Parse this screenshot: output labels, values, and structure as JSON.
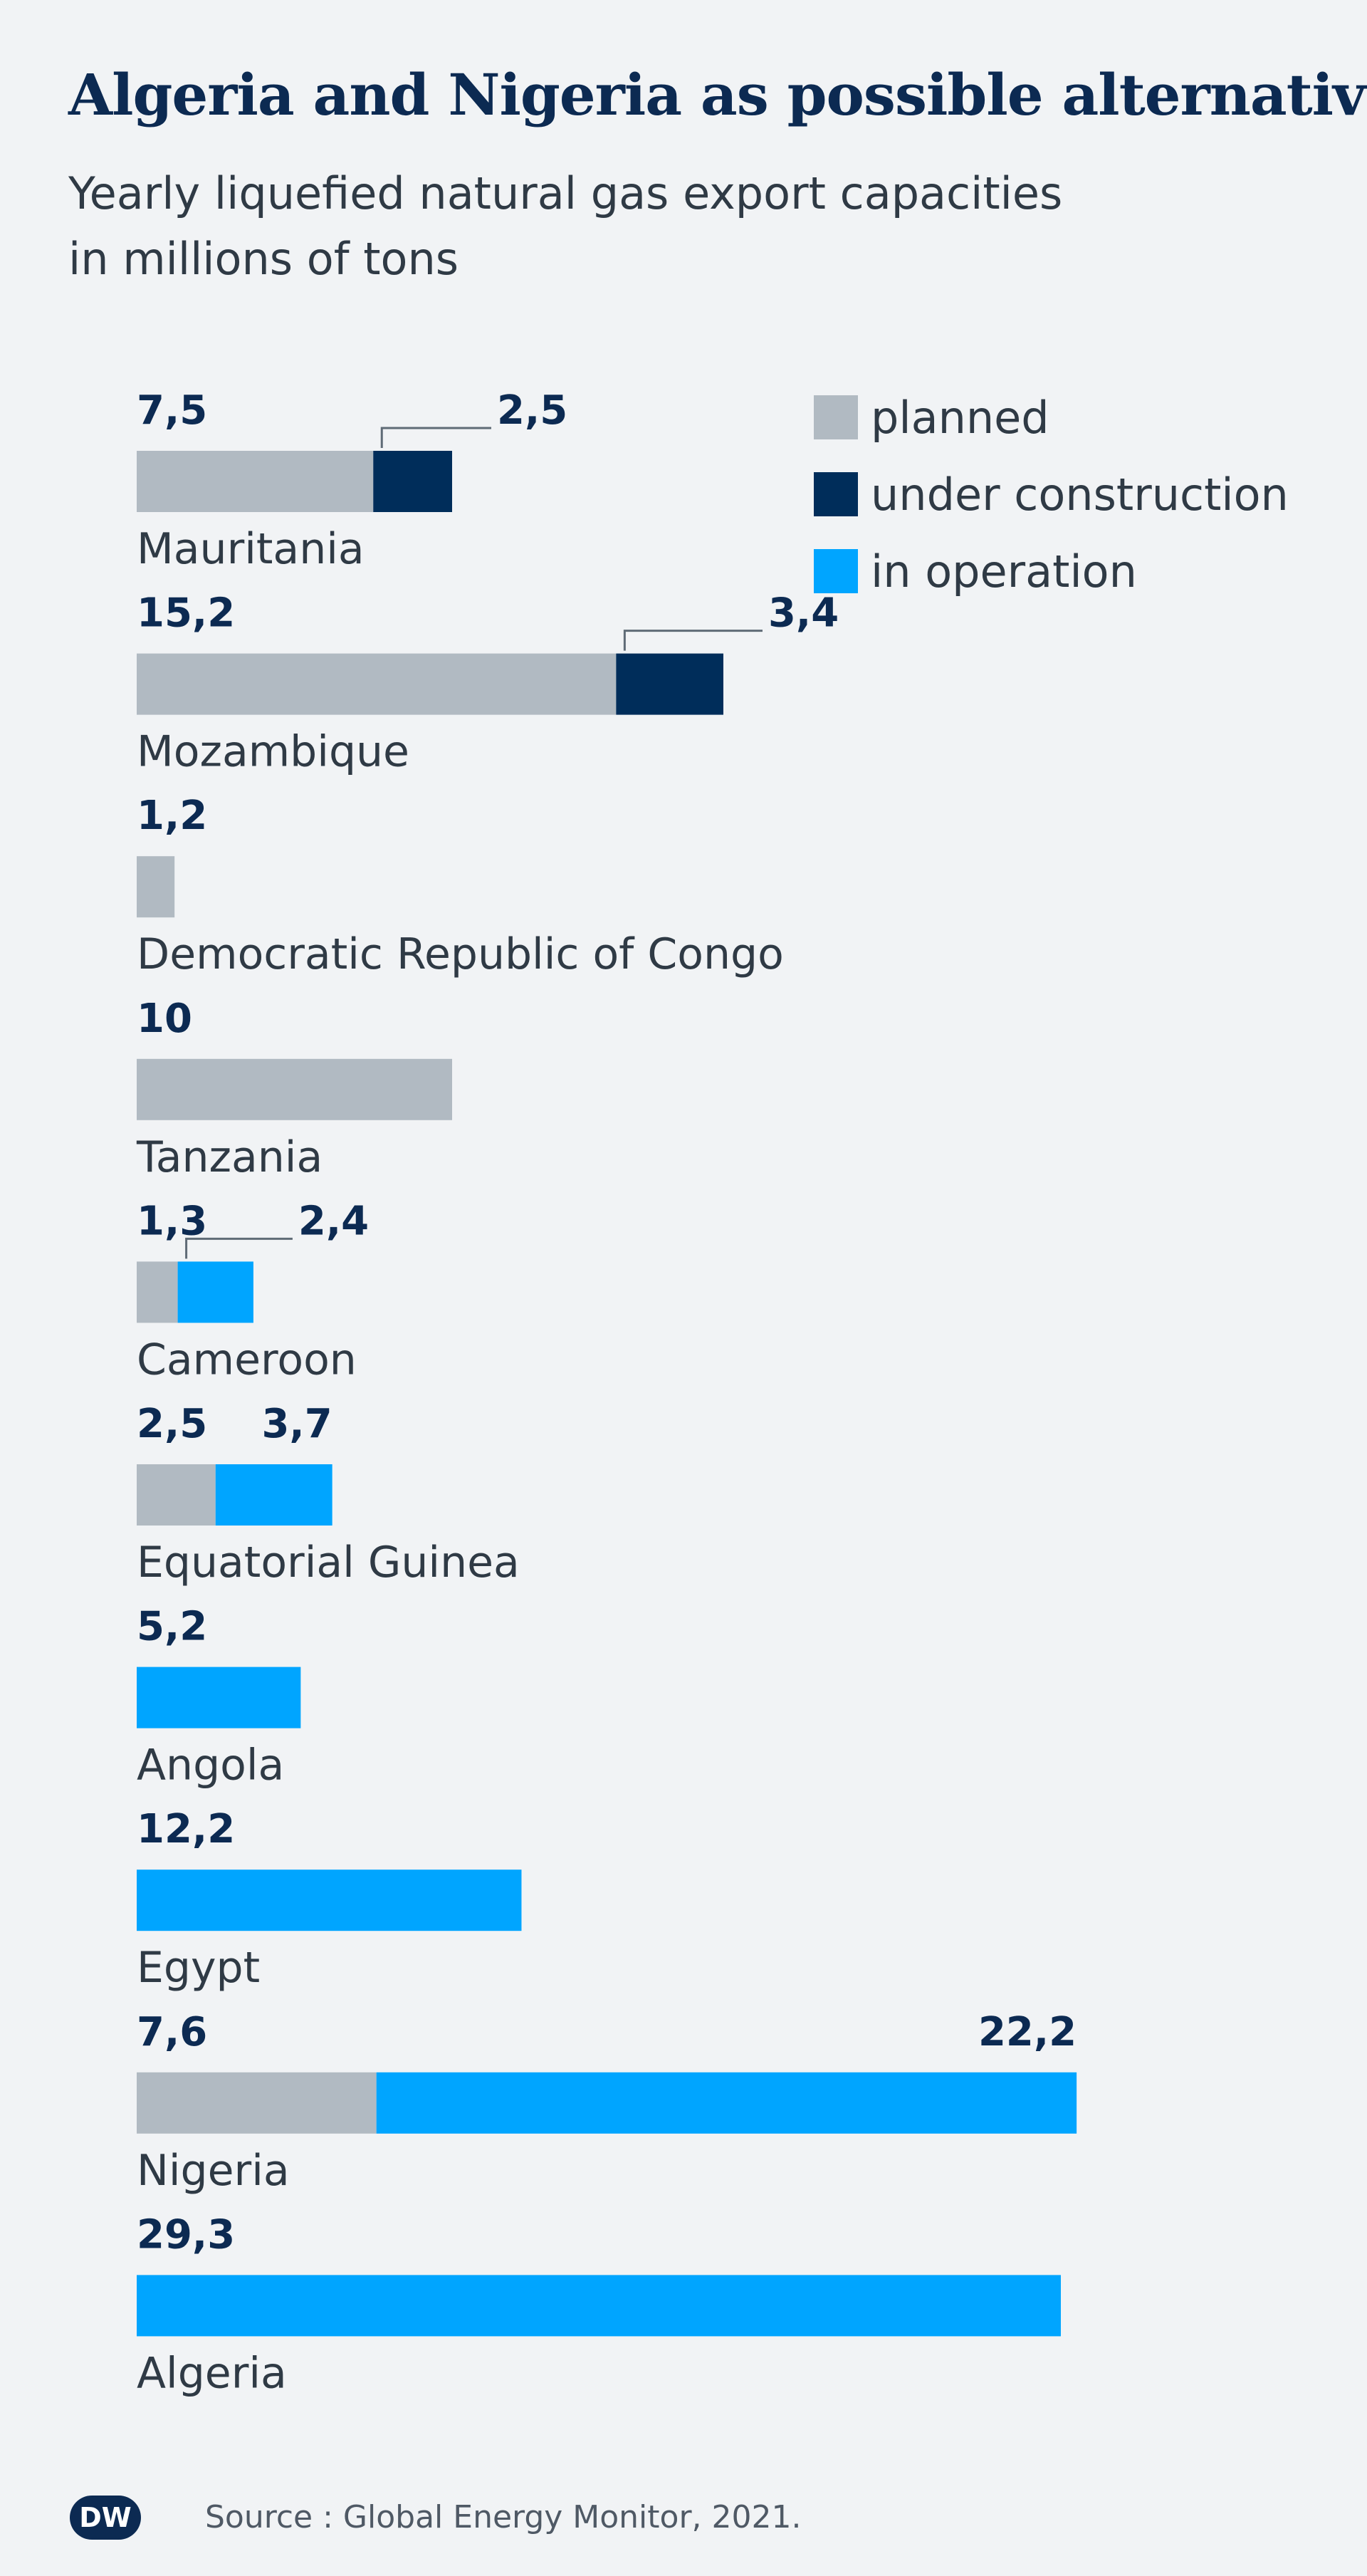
{
  "title": "Algeria and Nigeria as possible alternatives",
  "subtitle_line1": "Yearly liquefied natural gas export capacities",
  "subtitle_line2": "in millions of tons",
  "colors": {
    "planned": "#b1bac2",
    "under_construction": "#002d5a",
    "in_operation": "#00a5ff",
    "value_text": "#0c2a52",
    "category_text": "#2f3a45"
  },
  "legend": [
    {
      "key": "planned",
      "label": "planned"
    },
    {
      "key": "under_construction",
      "label": "under construction"
    },
    {
      "key": "in_operation",
      "label": "in operation"
    }
  ],
  "source": "Source : Global Energy Monitor, 2021.",
  "logo_text": "DW",
  "chart_data": {
    "type": "bar",
    "orientation": "horizontal",
    "stacked": true,
    "title": "Algeria and Nigeria as possible alternatives",
    "subtitle": "Yearly liquefied natural gas export capacities in millions of tons",
    "unit": "millions of tons",
    "series_names": [
      "planned",
      "under construction",
      "in operation"
    ],
    "categories": [
      "Mauritania",
      "Mozambique",
      "Democratic Republic of Congo",
      "Tanzania",
      "Cameroon",
      "Equatorial Guinea",
      "Angola",
      "Egypt",
      "Nigeria",
      "Algeria"
    ],
    "series": [
      {
        "name": "planned",
        "key": "planned",
        "values": [
          7.5,
          15.2,
          1.2,
          10,
          1.3,
          2.5,
          0,
          0,
          7.6,
          0
        ]
      },
      {
        "name": "under construction",
        "key": "under_construction",
        "values": [
          2.5,
          3.4,
          0,
          0,
          0,
          0,
          0,
          0,
          0,
          0
        ]
      },
      {
        "name": "in operation",
        "key": "in_operation",
        "values": [
          0,
          0,
          0,
          0,
          2.4,
          3.7,
          5.2,
          12.2,
          22.2,
          29.3
        ]
      }
    ],
    "value_labels": [
      [
        "7,5",
        "2,5"
      ],
      [
        "15,2",
        "3,4"
      ],
      [
        "1,2"
      ],
      [
        "10"
      ],
      [
        "1,3",
        "2,4"
      ],
      [
        "2,5",
        "3,7"
      ],
      [
        "5,2"
      ],
      [
        "12,2"
      ],
      [
        "7,6",
        "22,2"
      ],
      [
        "29,3"
      ]
    ],
    "xlim": [
      0,
      30
    ]
  }
}
